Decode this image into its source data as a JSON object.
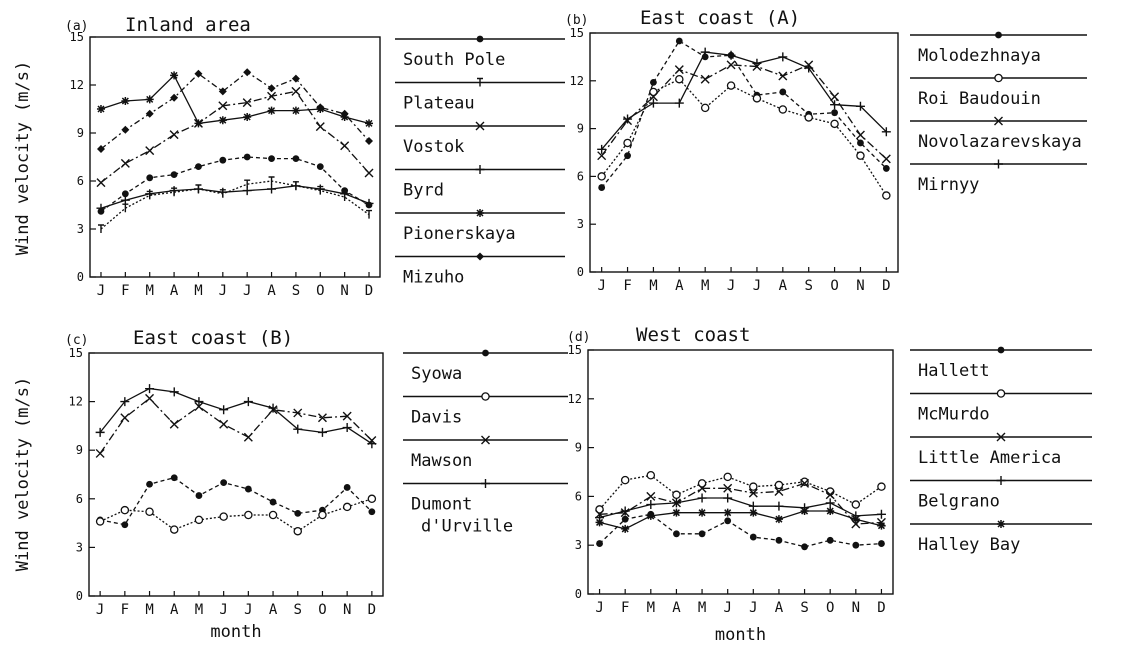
{
  "chart_data": [
    {
      "type": "line",
      "panel_tag": "(a)",
      "title": "Inland area",
      "ylabel": "Wind velocity (m/s)",
      "xlabel": "",
      "categories": [
        "J",
        "F",
        "M",
        "A",
        "M",
        "J",
        "J",
        "A",
        "S",
        "O",
        "N",
        "D"
      ],
      "ylim": [
        0,
        15
      ],
      "yticks": [
        "0",
        "3",
        "6",
        "9",
        "12",
        "15"
      ],
      "series": [
        {
          "name": "South Pole",
          "marker": "dot",
          "dash": "4,3",
          "values": [
            4.1,
            5.2,
            6.2,
            6.4,
            6.9,
            7.3,
            7.5,
            7.4,
            7.4,
            6.9,
            5.4,
            4.5
          ]
        },
        {
          "name": "Plateau",
          "marker": "tick",
          "dash": "2,2",
          "values": [
            3.0,
            4.3,
            5.1,
            5.3,
            5.5,
            5.2,
            5.8,
            6.0,
            5.7,
            5.4,
            5.0,
            3.9
          ]
        },
        {
          "name": "Vostok",
          "marker": "x",
          "dash": "8,3,2,3",
          "values": [
            5.9,
            7.1,
            7.9,
            8.9,
            9.6,
            10.7,
            10.9,
            11.3,
            11.6,
            9.4,
            8.2,
            6.5
          ]
        },
        {
          "name": "Byrd",
          "marker": "plus",
          "dash": "",
          "values": [
            4.3,
            4.8,
            5.2,
            5.4,
            5.5,
            5.3,
            5.4,
            5.5,
            5.7,
            5.5,
            5.2,
            4.6
          ]
        },
        {
          "name": "Pionerskaya",
          "marker": "star",
          "dash": "",
          "values": [
            10.5,
            11.0,
            11.1,
            12.6,
            9.6,
            9.8,
            10.0,
            10.4,
            10.4,
            10.5,
            10.0,
            9.6
          ]
        },
        {
          "name": "Mizuho",
          "marker": "diamond",
          "dash": "6,3,2,3",
          "values": [
            8.0,
            9.2,
            10.2,
            11.2,
            12.7,
            11.6,
            12.8,
            11.8,
            12.4,
            10.6,
            10.2,
            8.5
          ]
        }
      ]
    },
    {
      "type": "line",
      "panel_tag": "(b)",
      "title": "East coast (A)",
      "ylabel": "",
      "xlabel": "",
      "categories": [
        "J",
        "F",
        "M",
        "A",
        "M",
        "J",
        "J",
        "A",
        "S",
        "O",
        "N",
        "D"
      ],
      "ylim": [
        0,
        15
      ],
      "yticks": [
        "0",
        "3",
        "6",
        "9",
        "12",
        "15"
      ],
      "series": [
        {
          "name": "Molodezhnaya",
          "marker": "dot",
          "dash": "4,3",
          "values": [
            5.3,
            7.3,
            11.9,
            14.5,
            13.5,
            13.6,
            11.1,
            11.3,
            9.9,
            10.0,
            8.1,
            6.5
          ]
        },
        {
          "name": "Roi Baudouin",
          "marker": "circle",
          "dash": "2,2",
          "values": [
            6.0,
            8.1,
            11.3,
            12.1,
            10.3,
            11.7,
            10.9,
            10.2,
            9.7,
            9.3,
            7.3,
            4.8
          ]
        },
        {
          "name": "Novolazarevskaya",
          "marker": "x",
          "dash": "8,3,2,3",
          "values": [
            7.3,
            9.5,
            11.0,
            12.7,
            12.1,
            13.0,
            12.9,
            12.3,
            13.0,
            11.0,
            8.6,
            7.1
          ]
        },
        {
          "name": "Mirnyy",
          "marker": "plus",
          "dash": "",
          "values": [
            7.7,
            9.6,
            10.6,
            10.6,
            13.8,
            13.6,
            13.1,
            13.5,
            12.8,
            10.5,
            10.4,
            8.8
          ]
        }
      ]
    },
    {
      "type": "line",
      "panel_tag": "(c)",
      "title": "East coast (B)",
      "ylabel": "Wind velocity (m/s)",
      "xlabel": "month",
      "categories": [
        "J",
        "F",
        "M",
        "A",
        "M",
        "J",
        "J",
        "A",
        "S",
        "O",
        "N",
        "D"
      ],
      "ylim": [
        0,
        15
      ],
      "yticks": [
        "0",
        "3",
        "6",
        "9",
        "12",
        "15"
      ],
      "series": [
        {
          "name": "Syowa",
          "marker": "dot",
          "dash": "4,3",
          "values": [
            4.7,
            4.4,
            6.9,
            7.3,
            6.2,
            7.0,
            6.6,
            5.8,
            5.1,
            5.3,
            6.7,
            5.2
          ]
        },
        {
          "name": "Davis",
          "marker": "circle",
          "dash": "2,2",
          "values": [
            4.6,
            5.3,
            5.2,
            4.1,
            4.7,
            4.9,
            5.0,
            5.0,
            4.0,
            5.0,
            5.5,
            6.0
          ]
        },
        {
          "name": "Mawson",
          "marker": "x",
          "dash": "8,3,2,3",
          "values": [
            8.8,
            11.0,
            12.2,
            10.6,
            11.7,
            10.6,
            9.8,
            11.5,
            11.3,
            11.0,
            11.1,
            9.6
          ]
        },
        {
          "name": "Dumont d'Urville",
          "label_lines": [
            "Dumont",
            "d'Urville"
          ],
          "marker": "plus",
          "dash": "",
          "values": [
            10.1,
            12.0,
            12.8,
            12.6,
            12.0,
            11.5,
            12.0,
            11.6,
            10.3,
            10.1,
            10.4,
            9.4
          ]
        }
      ]
    },
    {
      "type": "line",
      "panel_tag": "(d)",
      "title": "West coast",
      "ylabel": "",
      "xlabel": "month",
      "categories": [
        "J",
        "F",
        "M",
        "A",
        "M",
        "J",
        "J",
        "A",
        "S",
        "O",
        "N",
        "D"
      ],
      "ylim": [
        0,
        15
      ],
      "yticks": [
        "0",
        "3",
        "6",
        "9",
        "12",
        "15"
      ],
      "series": [
        {
          "name": "Hallett",
          "marker": "dot",
          "dash": "4,3",
          "values": [
            3.1,
            4.6,
            4.9,
            3.7,
            3.7,
            4.5,
            3.5,
            3.3,
            2.9,
            3.3,
            3.0,
            3.1
          ]
        },
        {
          "name": "McMurdo",
          "marker": "circle",
          "dash": "2,2",
          "values": [
            5.2,
            7.0,
            7.3,
            6.1,
            6.8,
            7.2,
            6.6,
            6.7,
            6.9,
            6.3,
            5.5,
            6.6
          ]
        },
        {
          "name": "Little America",
          "marker": "x",
          "dash": "8,3,2,3",
          "values": [
            4.9,
            5.0,
            6.0,
            5.6,
            6.5,
            6.5,
            6.2,
            6.3,
            6.8,
            6.1,
            4.3,
            4.4
          ]
        },
        {
          "name": "Belgrano",
          "marker": "plus",
          "dash": "",
          "values": [
            4.7,
            5.1,
            5.5,
            5.6,
            5.9,
            5.9,
            5.4,
            5.4,
            5.3,
            5.6,
            4.8,
            4.9
          ]
        },
        {
          "name": "Halley Bay",
          "marker": "star",
          "dash": "",
          "values": [
            4.4,
            4.0,
            4.8,
            5.0,
            5.0,
            5.0,
            5.0,
            4.6,
            5.1,
            5.1,
            4.6,
            4.2
          ]
        }
      ]
    }
  ]
}
